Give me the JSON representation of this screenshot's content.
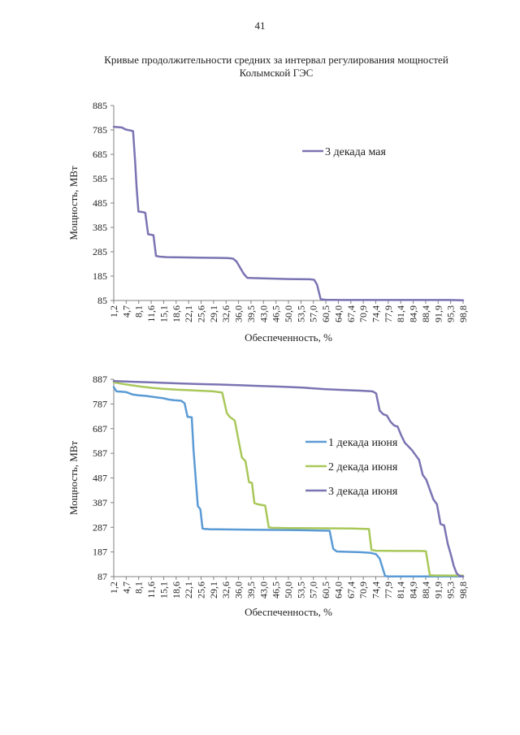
{
  "page_number": "41",
  "document": {
    "title_line1": "Кривые продолжительности средних за интервал регулирования мощностей",
    "title_line2": "Колымской ГЭС"
  },
  "colors": {
    "may3": "#7b74b3",
    "jun1": "#5b9bd5",
    "jun2": "#a9c85a",
    "jun3": "#7b74b3",
    "axis": "#808080"
  },
  "chart_data": [
    {
      "type": "line",
      "ylabel": "Мощность, МВт",
      "xlabel": "Обеспеченность, %",
      "ylim": [
        85,
        885
      ],
      "yticks": [
        "85",
        "185",
        "285",
        "385",
        "485",
        "585",
        "685",
        "785",
        "885"
      ],
      "xticks": [
        "1,2",
        "4,7",
        "8,1",
        "11,6",
        "15,1",
        "18,6",
        "22,1",
        "25,6",
        "29,1",
        "32,6",
        "36,0",
        "39,5",
        "43,0",
        "46,5",
        "50,0",
        "53,5",
        "57,0",
        "60,5",
        "64,0",
        "67,4",
        "70,9",
        "74,4",
        "77,9",
        "81,4",
        "84,9",
        "88,4",
        "91,9",
        "95,3",
        "98,8"
      ],
      "xlim": [
        1.2,
        98.8
      ],
      "legend_position": "top-right",
      "series": [
        {
          "name": "3 декада мая",
          "color": "#7b74b3",
          "x": [
            1.2,
            3.5,
            4.5,
            5.8,
            6.6,
            7.2,
            7.6,
            8.1,
            9.3,
            10.0,
            10.8,
            11.6,
            12.3,
            13.0,
            14.0,
            16.0,
            20.0,
            25.0,
            30.0,
            33.0,
            34.5,
            35.5,
            36.5,
            37.5,
            38.5,
            40.0,
            45.0,
            50.0,
            56.0,
            57.2,
            58.0,
            59.0,
            60.5,
            65.0,
            75.0,
            85.0,
            95.0,
            98.8
          ],
          "y": [
            798,
            795,
            787,
            783,
            780,
            650,
            545,
            450,
            448,
            445,
            357,
            355,
            353,
            268,
            265,
            263,
            262,
            261,
            260,
            259,
            257,
            245,
            220,
            195,
            178,
            177,
            175,
            173,
            172,
            170,
            150,
            90,
            88,
            87,
            87,
            87,
            87,
            86
          ]
        }
      ]
    },
    {
      "type": "line",
      "ylabel": "Мощность, МВт",
      "xlabel": "Обеспеченность, %",
      "ylim": [
        87,
        887
      ],
      "yticks": [
        "87",
        "187",
        "287",
        "387",
        "487",
        "587",
        "687",
        "787",
        "887"
      ],
      "xticks": [
        "1,2",
        "4,7",
        "8,1",
        "11,6",
        "15,1",
        "18,6",
        "22,1",
        "25,6",
        "29,1",
        "32,6",
        "36,0",
        "39,5",
        "43,0",
        "46,5",
        "50,0",
        "53,5",
        "57,0",
        "60,5",
        "64,0",
        "67,4",
        "70,9",
        "74,4",
        "77,9",
        "81,4",
        "84,9",
        "88,4",
        "91,9",
        "95,3",
        "98,8"
      ],
      "xlim": [
        1.2,
        98.8
      ],
      "legend_position": "right",
      "series": [
        {
          "name": "1 декада июня",
          "color": "#5b9bd5",
          "x": [
            1.2,
            2.0,
            4.7,
            6.5,
            8.1,
            10.0,
            12.5,
            15.1,
            16.5,
            18.0,
            20.0,
            21.0,
            21.8,
            23.0,
            23.5,
            24.0,
            24.7,
            25.4,
            26.0,
            26.7,
            27.3,
            28.0,
            30.0,
            40.0,
            50.0,
            58.0,
            61.5,
            62.5,
            63.5,
            65.0,
            70.0,
            73.0,
            74.5,
            75.5,
            77.0,
            78.0,
            80.0,
            90.0,
            98.8
          ],
          "y": [
            855,
            838,
            835,
            825,
            822,
            820,
            815,
            810,
            805,
            802,
            800,
            790,
            735,
            733,
            600,
            500,
            373,
            360,
            282,
            280,
            280,
            279,
            279,
            277,
            276,
            274,
            273,
            200,
            189,
            188,
            186,
            183,
            178,
            160,
            89,
            88,
            88,
            88,
            88
          ]
        },
        {
          "name": "2 декада июня",
          "color": "#a9c85a",
          "x": [
            1.2,
            3.0,
            6.0,
            9.0,
            12.0,
            15.0,
            18.6,
            22.0,
            26.0,
            29.0,
            31.5,
            32.8,
            33.6,
            35.0,
            36.0,
            37.0,
            38.0,
            39.0,
            39.8,
            40.5,
            41.5,
            43.5,
            44.5,
            45.5,
            50.0,
            60.0,
            68.0,
            72.5,
            73.2,
            74.5,
            80.0,
            87.0,
            88.4,
            89.5,
            90.5,
            98.8
          ],
          "y": [
            875,
            870,
            863,
            857,
            852,
            848,
            845,
            843,
            840,
            838,
            833,
            750,
            735,
            720,
            645,
            570,
            555,
            470,
            467,
            385,
            380,
            375,
            287,
            285,
            284,
            283,
            282,
            280,
            195,
            192,
            191,
            191,
            190,
            93,
            92,
            91
          ]
        },
        {
          "name": "3 декада июня",
          "color": "#7b74b3",
          "x": [
            1.2,
            6.0,
            12.0,
            18.0,
            24.0,
            30.0,
            36.0,
            42.0,
            48.0,
            54.0,
            60.0,
            65.0,
            70.0,
            73.5,
            74.5,
            75.5,
            76.5,
            77.5,
            78.5,
            79.5,
            80.5,
            81.5,
            82.5,
            83.5,
            84.5,
            85.5,
            86.5,
            87.5,
            88.5,
            89.5,
            90.5,
            91.5,
            92.5,
            93.5,
            94.5,
            95.3,
            96.2,
            97.0,
            97.8,
            98.8
          ],
          "y": [
            880,
            877,
            874,
            871,
            868,
            866,
            863,
            860,
            857,
            853,
            847,
            844,
            841,
            838,
            830,
            760,
            745,
            740,
            715,
            700,
            695,
            660,
            630,
            615,
            600,
            580,
            560,
            500,
            480,
            440,
            400,
            380,
            300,
            295,
            220,
            180,
            130,
            100,
            90,
            88
          ]
        }
      ]
    }
  ]
}
